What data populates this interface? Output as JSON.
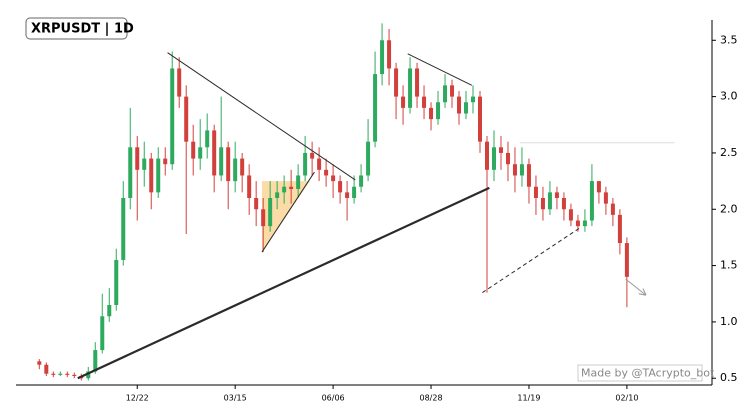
{
  "chart_data": {
    "type": "candlestick",
    "title": "XRPUSDT | 1D",
    "watermark": "Made by @TAcrypto_bot",
    "up_color": "#2eaa5e",
    "down_color": "#d2403c",
    "xlim": [
      -20,
      577
    ],
    "ylim": [
      0.44,
      3.68
    ],
    "xticks": [
      {
        "value": 84,
        "label": "12/22"
      },
      {
        "value": 168,
        "label": "03/15"
      },
      {
        "value": 252,
        "label": "06/06"
      },
      {
        "value": 336,
        "label": "08/28"
      },
      {
        "value": 420,
        "label": "11/19"
      },
      {
        "value": 504,
        "label": "02/10"
      }
    ],
    "yticks": [
      0.5,
      {
        "value": 1,
        "label": "1.0"
      },
      1.5,
      {
        "value": 2,
        "label": "2.0"
      },
      2.5,
      {
        "value": 3,
        "label": "3.0"
      },
      3.5
    ],
    "candles": {
      "x": [
        0,
        6,
        12,
        18,
        24,
        30,
        36,
        42,
        48,
        54,
        60,
        66,
        72,
        78,
        84,
        90,
        96,
        102,
        108,
        114,
        120,
        126,
        132,
        138,
        144,
        150,
        156,
        162,
        168,
        174,
        180,
        186,
        192,
        198,
        204,
        210,
        216,
        222,
        228,
        234,
        240,
        246,
        252,
        258,
        264,
        270,
        276,
        282,
        288,
        294,
        300,
        306,
        312,
        318,
        324,
        330,
        336,
        342,
        348,
        354,
        360,
        366,
        372,
        378,
        384,
        390,
        396,
        402,
        408,
        414,
        420,
        426,
        432,
        438,
        444,
        450,
        456,
        462,
        468,
        474,
        480,
        486,
        492,
        498,
        504
      ],
      "open": [
        0.65,
        0.62,
        0.54,
        0.53,
        0.54,
        0.53,
        0.52,
        0.5,
        0.56,
        0.75,
        1.05,
        1.15,
        1.55,
        2.1,
        2.55,
        2.35,
        2.45,
        2.15,
        2.45,
        2.4,
        3.25,
        3.0,
        2.6,
        2.45,
        2.55,
        2.7,
        2.3,
        2.55,
        2.25,
        2.45,
        2.3,
        2.1,
        2.0,
        1.85,
        2.1,
        2.15,
        2.2,
        2.18,
        2.3,
        2.5,
        2.45,
        2.35,
        2.3,
        2.25,
        2.15,
        2.1,
        2.2,
        2.3,
        2.6,
        3.2,
        3.5,
        3.25,
        3.0,
        2.9,
        3.25,
        3.0,
        2.9,
        2.8,
        2.95,
        3.1,
        3.0,
        2.85,
        2.95,
        3.0,
        2.6,
        2.35,
        2.55,
        2.5,
        2.4,
        2.3,
        2.4,
        2.2,
        2.1,
        2.0,
        2.15,
        2.1,
        2.0,
        1.9,
        1.85,
        1.9,
        2.25,
        2.15,
        2.05,
        1.95,
        1.7
      ],
      "high": [
        0.67,
        0.64,
        0.56,
        0.56,
        0.56,
        0.55,
        0.54,
        0.6,
        0.82,
        1.25,
        1.3,
        1.65,
        2.25,
        2.9,
        2.65,
        2.6,
        2.5,
        2.55,
        2.55,
        3.4,
        3.35,
        3.1,
        2.75,
        2.8,
        2.85,
        2.75,
        3.0,
        2.6,
        2.6,
        2.5,
        2.4,
        2.25,
        2.1,
        2.25,
        2.25,
        2.3,
        2.35,
        2.4,
        2.65,
        2.6,
        2.55,
        2.45,
        2.4,
        2.3,
        2.25,
        2.3,
        2.4,
        2.8,
        3.4,
        3.65,
        3.6,
        3.3,
        3.1,
        3.35,
        3.3,
        3.1,
        2.95,
        3.05,
        3.2,
        3.15,
        3.05,
        3.05,
        3.1,
        3.05,
        2.65,
        2.7,
        2.65,
        2.6,
        2.55,
        2.55,
        2.45,
        2.3,
        2.2,
        2.25,
        2.2,
        2.15,
        2.05,
        1.95,
        2.0,
        2.4,
        2.25,
        2.2,
        2.1,
        2.0,
        1.75
      ],
      "low": [
        0.58,
        0.52,
        0.51,
        0.52,
        0.51,
        0.5,
        0.48,
        0.48,
        0.54,
        0.72,
        1.0,
        1.1,
        1.5,
        2.0,
        1.9,
        2.2,
        2.0,
        2.1,
        2.3,
        2.35,
        2.9,
        1.78,
        2.3,
        2.35,
        2.45,
        2.15,
        2.25,
        2.0,
        2.15,
        2.15,
        1.95,
        1.85,
        1.62,
        1.8,
        2.0,
        2.05,
        2.05,
        2.1,
        2.25,
        2.3,
        2.25,
        2.2,
        2.1,
        2.05,
        1.9,
        2.05,
        2.15,
        2.25,
        2.55,
        3.1,
        3.1,
        2.8,
        2.75,
        2.85,
        2.9,
        2.8,
        2.7,
        2.75,
        2.9,
        2.9,
        2.75,
        2.8,
        2.85,
        2.5,
        1.26,
        2.25,
        2.35,
        2.25,
        2.15,
        2.2,
        2.05,
        1.95,
        1.9,
        1.95,
        2.0,
        1.9,
        1.85,
        1.8,
        1.8,
        1.85,
        2.05,
        1.95,
        1.85,
        1.6,
        1.13
      ],
      "close": [
        0.62,
        0.54,
        0.53,
        0.54,
        0.53,
        0.52,
        0.5,
        0.56,
        0.75,
        1.05,
        1.15,
        1.55,
        2.1,
        2.55,
        2.35,
        2.45,
        2.15,
        2.45,
        2.4,
        3.25,
        3.0,
        2.6,
        2.45,
        2.55,
        2.7,
        2.3,
        2.55,
        2.25,
        2.45,
        2.3,
        2.1,
        2.0,
        1.85,
        2.1,
        2.15,
        2.2,
        2.18,
        2.3,
        2.5,
        2.45,
        2.35,
        2.3,
        2.25,
        2.15,
        2.1,
        2.2,
        2.3,
        2.6,
        3.2,
        3.5,
        3.25,
        3.0,
        2.9,
        3.25,
        3.0,
        2.9,
        2.8,
        2.95,
        3.1,
        3.0,
        2.85,
        2.95,
        3.0,
        2.6,
        2.35,
        2.55,
        2.5,
        2.4,
        2.3,
        2.4,
        2.2,
        2.1,
        2.0,
        2.15,
        2.1,
        2.0,
        1.9,
        1.85,
        1.9,
        2.25,
        2.15,
        2.05,
        1.95,
        1.7,
        1.4
      ]
    },
    "zone": {
      "x": [
        191,
        191,
        232
      ],
      "y": [
        1.62,
        2.25,
        2.25
      ],
      "color": "#f9c46b"
    },
    "trendlines": [
      {
        "x": [
          33,
          386
        ],
        "y": [
          0.5,
          2.19
        ],
        "style": "bold",
        "color": "#2b2b2b"
      },
      {
        "x": [
          110,
          271
        ],
        "y": [
          3.39,
          2.26
        ],
        "style": "solid",
        "color": "#2b2b2b"
      },
      {
        "x": [
          191,
          236
        ],
        "y": [
          1.62,
          2.33
        ],
        "style": "solid",
        "color": "#2b2b2b"
      },
      {
        "x": [
          316,
          371
        ],
        "y": [
          3.38,
          3.1
        ],
        "style": "solid",
        "color": "#2b2b2b"
      },
      {
        "x": [
          380,
          463
        ],
        "y": [
          1.26,
          1.83
        ],
        "style": "dashed",
        "color": "#2b2b2b"
      },
      {
        "x": [
          412,
          545
        ],
        "y": [
          2.59,
          2.59
        ],
        "style": "faint",
        "color": "#dddddd"
      },
      {
        "x": [
          503,
          520
        ],
        "y": [
          1.38,
          1.24
        ],
        "style": "arrow",
        "color": "#999999"
      }
    ]
  }
}
